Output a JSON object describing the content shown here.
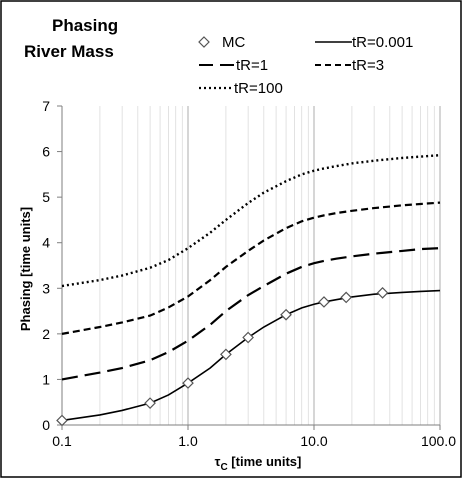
{
  "chart_data": {
    "type": "line",
    "title_lines": [
      "Phasing",
      "River Mass"
    ],
    "xlabel_prefix": "τ",
    "xlabel_sub": "C",
    "xlabel_suffix": " [time units]",
    "ylabel": "Phasing  [time units]",
    "xscale": "log",
    "xlim": [
      0.1,
      100
    ],
    "ylim": [
      0,
      7
    ],
    "x_ticks": [
      0.1,
      1,
      10,
      100
    ],
    "x_tick_labels": [
      "0.1",
      "1.0",
      "10.0",
      "100.0"
    ],
    "y_ticks": [
      0,
      1,
      2,
      3,
      4,
      5,
      6,
      7
    ],
    "y_tick_labels": [
      "0",
      "1",
      "2",
      "3",
      "4",
      "5",
      "6",
      "7"
    ],
    "grid": "vertical major and minor, horizontal none",
    "legend_position": "top",
    "series": [
      {
        "name": "MC",
        "style": "markers",
        "marker": "diamond-open",
        "x": [
          0.1,
          0.5,
          1,
          2,
          3,
          6,
          12,
          18,
          35
        ],
        "y": [
          0.1,
          0.48,
          0.92,
          1.55,
          1.92,
          2.42,
          2.7,
          2.8,
          2.9
        ]
      },
      {
        "name": "tR=0.001",
        "style": "solid",
        "x": [
          0.1,
          0.2,
          0.3,
          0.5,
          0.7,
          1,
          1.5,
          2,
          3,
          4,
          6,
          8,
          10,
          12,
          15,
          20,
          30,
          50,
          70,
          100
        ],
        "y": [
          0.1,
          0.22,
          0.32,
          0.48,
          0.66,
          0.92,
          1.25,
          1.55,
          1.92,
          2.15,
          2.42,
          2.57,
          2.65,
          2.7,
          2.75,
          2.81,
          2.87,
          2.91,
          2.93,
          2.95
        ]
      },
      {
        "name": "tR=1",
        "style": "long-dash",
        "x": [
          0.1,
          0.2,
          0.3,
          0.5,
          0.7,
          1,
          1.5,
          2,
          3,
          4,
          6,
          8,
          10,
          12,
          15,
          20,
          30,
          50,
          70,
          100
        ],
        "y": [
          1.0,
          1.15,
          1.25,
          1.42,
          1.6,
          1.85,
          2.2,
          2.5,
          2.85,
          3.05,
          3.32,
          3.47,
          3.55,
          3.6,
          3.65,
          3.7,
          3.76,
          3.82,
          3.86,
          3.88
        ]
      },
      {
        "name": "tR=3",
        "style": "short-dash",
        "x": [
          0.1,
          0.2,
          0.3,
          0.5,
          0.7,
          1,
          1.5,
          2,
          3,
          4,
          6,
          8,
          10,
          12,
          15,
          20,
          30,
          50,
          70,
          100
        ],
        "y": [
          2.0,
          2.15,
          2.25,
          2.4,
          2.58,
          2.82,
          3.18,
          3.47,
          3.82,
          4.05,
          4.32,
          4.47,
          4.55,
          4.6,
          4.65,
          4.7,
          4.76,
          4.82,
          4.85,
          4.88
        ]
      },
      {
        "name": "tR=100",
        "style": "dotted",
        "x": [
          0.1,
          0.2,
          0.3,
          0.5,
          0.7,
          1,
          1.5,
          2,
          3,
          4,
          6,
          8,
          10,
          12,
          15,
          20,
          30,
          50,
          70,
          100
        ],
        "y": [
          3.05,
          3.18,
          3.28,
          3.45,
          3.62,
          3.88,
          4.22,
          4.5,
          4.87,
          5.1,
          5.35,
          5.5,
          5.58,
          5.63,
          5.68,
          5.74,
          5.8,
          5.86,
          5.89,
          5.92
        ]
      }
    ]
  }
}
